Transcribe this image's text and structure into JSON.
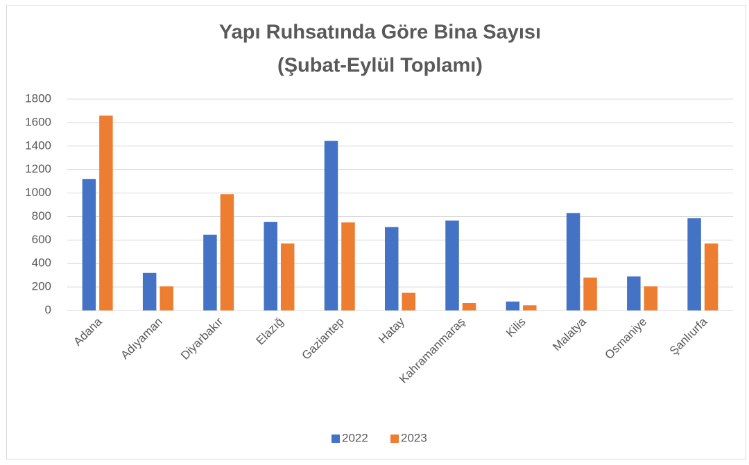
{
  "chart_data": {
    "type": "bar",
    "title": [
      "Yapı Ruhsatında Göre Bina Sayısı",
      "(Şubat-Eylül Toplamı)"
    ],
    "categories": [
      "Adana",
      "Adıyaman",
      "Diyarbakır",
      "Elazığ",
      "Gaziantep",
      "Hatay",
      "Kahramanmaraş",
      "Kilis",
      "Malatya",
      "Osmaniye",
      "Şanlıurfa"
    ],
    "series": [
      {
        "name": "2022",
        "color": "#4472c4",
        "values": [
          1120,
          320,
          645,
          755,
          1445,
          710,
          765,
          75,
          830,
          290,
          785
        ]
      },
      {
        "name": "2023",
        "color": "#ed7d31",
        "values": [
          1660,
          205,
          990,
          570,
          750,
          150,
          65,
          45,
          280,
          205,
          570
        ]
      }
    ],
    "ylim": [
      0,
      1800
    ],
    "yticks": [
      0,
      200,
      400,
      600,
      800,
      1000,
      1200,
      1400,
      1600,
      1800
    ],
    "grid": true,
    "legend": "bottom"
  }
}
